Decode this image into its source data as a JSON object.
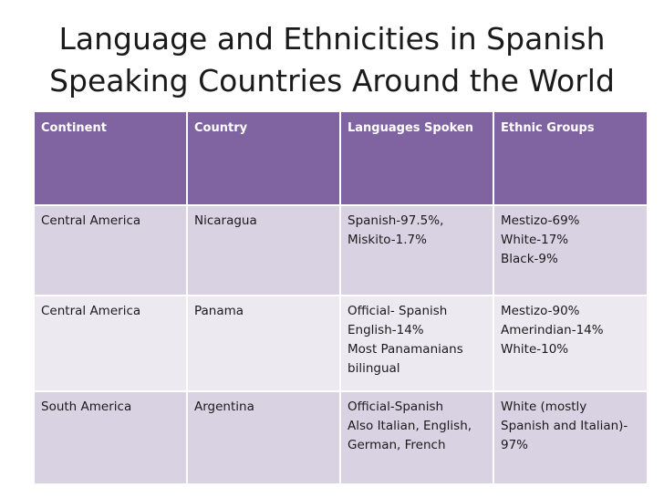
{
  "title": {
    "line1": "Language and Ethnicities in Spanish",
    "line2": "Speaking Countries Around the World"
  },
  "table": {
    "headers": [
      "Continent",
      "Country",
      "Languages Spoken",
      "Ethnic Groups"
    ],
    "rows": [
      {
        "continent": "Central America",
        "country": "Nicaragua",
        "languages": [
          "Spanish-97.5%,",
          "Miskito-1.7%"
        ],
        "ethnic": [
          "Mestizo-69%",
          "White-17%",
          "Black-9%"
        ]
      },
      {
        "continent": "Central America",
        "country": "Panama",
        "languages": [
          "Official- Spanish",
          "English-14%",
          "Most Panamanians",
          "bilingual"
        ],
        "ethnic": [
          "Mestizo-90%",
          "Amerindian-14%",
          "White-10%"
        ]
      },
      {
        "continent": "South America",
        "country": "Argentina",
        "languages": [
          "Official-Spanish",
          "Also Italian, English,",
          "German, French"
        ],
        "ethnic": [
          "White (mostly",
          "Spanish and Italian)-",
          "97%"
        ]
      }
    ]
  },
  "colors": {
    "header_bg": "#8064a2",
    "row_dark": "#d8d2e3",
    "row_light": "#ece9f1"
  }
}
